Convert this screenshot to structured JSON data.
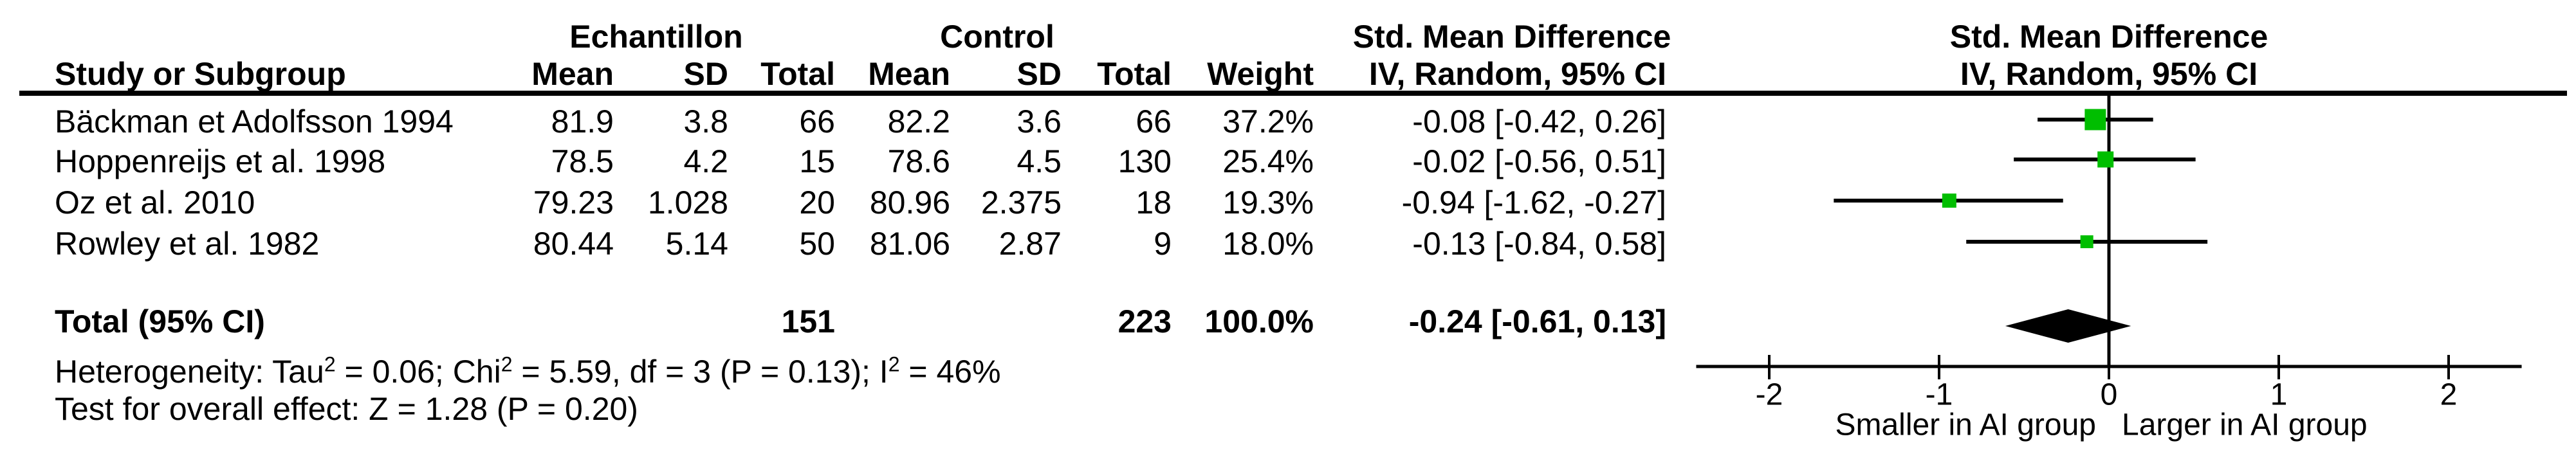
{
  "table": {
    "group_headers": {
      "echantillon": "Echantillon",
      "control": "Control",
      "smd_table": "Std. Mean Difference",
      "smd_plot": "Std. Mean Difference"
    },
    "col_headers": {
      "study": "Study or Subgroup",
      "ech_mean": "Mean",
      "ech_sd": "SD",
      "ech_total": "Total",
      "ctrl_mean": "Mean",
      "ctrl_sd": "SD",
      "ctrl_total": "Total",
      "weight": "Weight",
      "ci": "IV, Random, 95% CI",
      "ci_plot": "IV, Random, 95% CI"
    },
    "rows": [
      {
        "study": "Bäckman et Adolfsson 1994",
        "ech_mean": "81.9",
        "ech_sd": "3.8",
        "ech_total": "66",
        "ctrl_mean": "82.2",
        "ctrl_sd": "3.6",
        "ctrl_total": "66",
        "weight": "37.2%",
        "ci": "-0.08 [-0.42, 0.26]"
      },
      {
        "study": "Hoppenreijs et al. 1998",
        "ech_mean": "78.5",
        "ech_sd": "4.2",
        "ech_total": "15",
        "ctrl_mean": "78.6",
        "ctrl_sd": "4.5",
        "ctrl_total": "130",
        "weight": "25.4%",
        "ci": "-0.02 [-0.56, 0.51]"
      },
      {
        "study": "Oz et al. 2010",
        "ech_mean": "79.23",
        "ech_sd": "1.028",
        "ech_total": "20",
        "ctrl_mean": "80.96",
        "ctrl_sd": "2.375",
        "ctrl_total": "18",
        "weight": "19.3%",
        "ci": "-0.94 [-1.62, -0.27]"
      },
      {
        "study": "Rowley et al. 1982",
        "ech_mean": "80.44",
        "ech_sd": "5.14",
        "ech_total": "50",
        "ctrl_mean": "81.06",
        "ctrl_sd": "2.87",
        "ctrl_total": "9",
        "weight": "18.0%",
        "ci": "-0.13 [-0.84, 0.58]"
      }
    ],
    "total_row": {
      "label": "Total (95% CI)",
      "ech_total": "151",
      "ctrl_total": "223",
      "weight": "100.0%",
      "ci": "-0.24 [-0.61, 0.13]"
    },
    "heterogeneity": {
      "part1": "Heterogeneity: Tau",
      "sup1": "2",
      "part2": " = 0.06; Chi",
      "sup2": "2",
      "part3": " = 5.59, df = 3 (P = 0.13); I",
      "sup3": "2",
      "part4": " = 46%"
    },
    "overall_effect": "Test for overall effect: Z = 1.28 (P = 0.20)"
  },
  "chart_data": {
    "type": "forest",
    "effect_measure": "Std. Mean Difference, IV, Random, 95% CI",
    "studies": [
      {
        "name": "Bäckman et Adolfsson 1994",
        "smd": -0.08,
        "ci_low": -0.42,
        "ci_high": 0.26,
        "weight_pct": 37.2
      },
      {
        "name": "Hoppenreijs et al. 1998",
        "smd": -0.02,
        "ci_low": -0.56,
        "ci_high": 0.51,
        "weight_pct": 25.4
      },
      {
        "name": "Oz et al. 2010",
        "smd": -0.94,
        "ci_low": -1.62,
        "ci_high": -0.27,
        "weight_pct": 19.3
      },
      {
        "name": "Rowley et al. 1982",
        "smd": -0.13,
        "ci_low": -0.84,
        "ci_high": 0.58,
        "weight_pct": 18.0
      }
    ],
    "total": {
      "label": "Total (95% CI)",
      "smd": -0.24,
      "ci_low": -0.61,
      "ci_high": 0.13
    },
    "x_ticks": [
      -2,
      -1,
      0,
      1,
      2
    ],
    "x_range": [
      -2.43,
      2.43
    ],
    "xlabel_left": "Smaller in AI group",
    "xlabel_right": "Larger in AI group",
    "marker_color": "#00BE00",
    "line_color": "#000000"
  }
}
